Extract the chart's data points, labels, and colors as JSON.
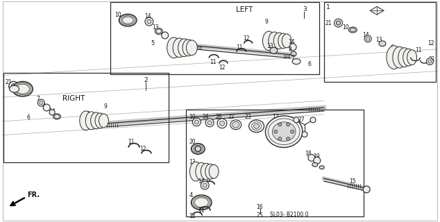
{
  "bg_color": "#f5f5f0",
  "fig_width": 6.34,
  "fig_height": 3.2,
  "dpi": 100,
  "lc": "#2a2a2a",
  "lc_light": "#888888",
  "fc_part": "#d8d8d8",
  "fc_white": "#f0f0ec",
  "label_LEFT": "LEFT",
  "label_RIGHT": "RIGHT",
  "label_FR": "FR.",
  "label_code": "SL03- B2100 0",
  "label_1": "1",
  "label_2": "2",
  "label_3": "3"
}
